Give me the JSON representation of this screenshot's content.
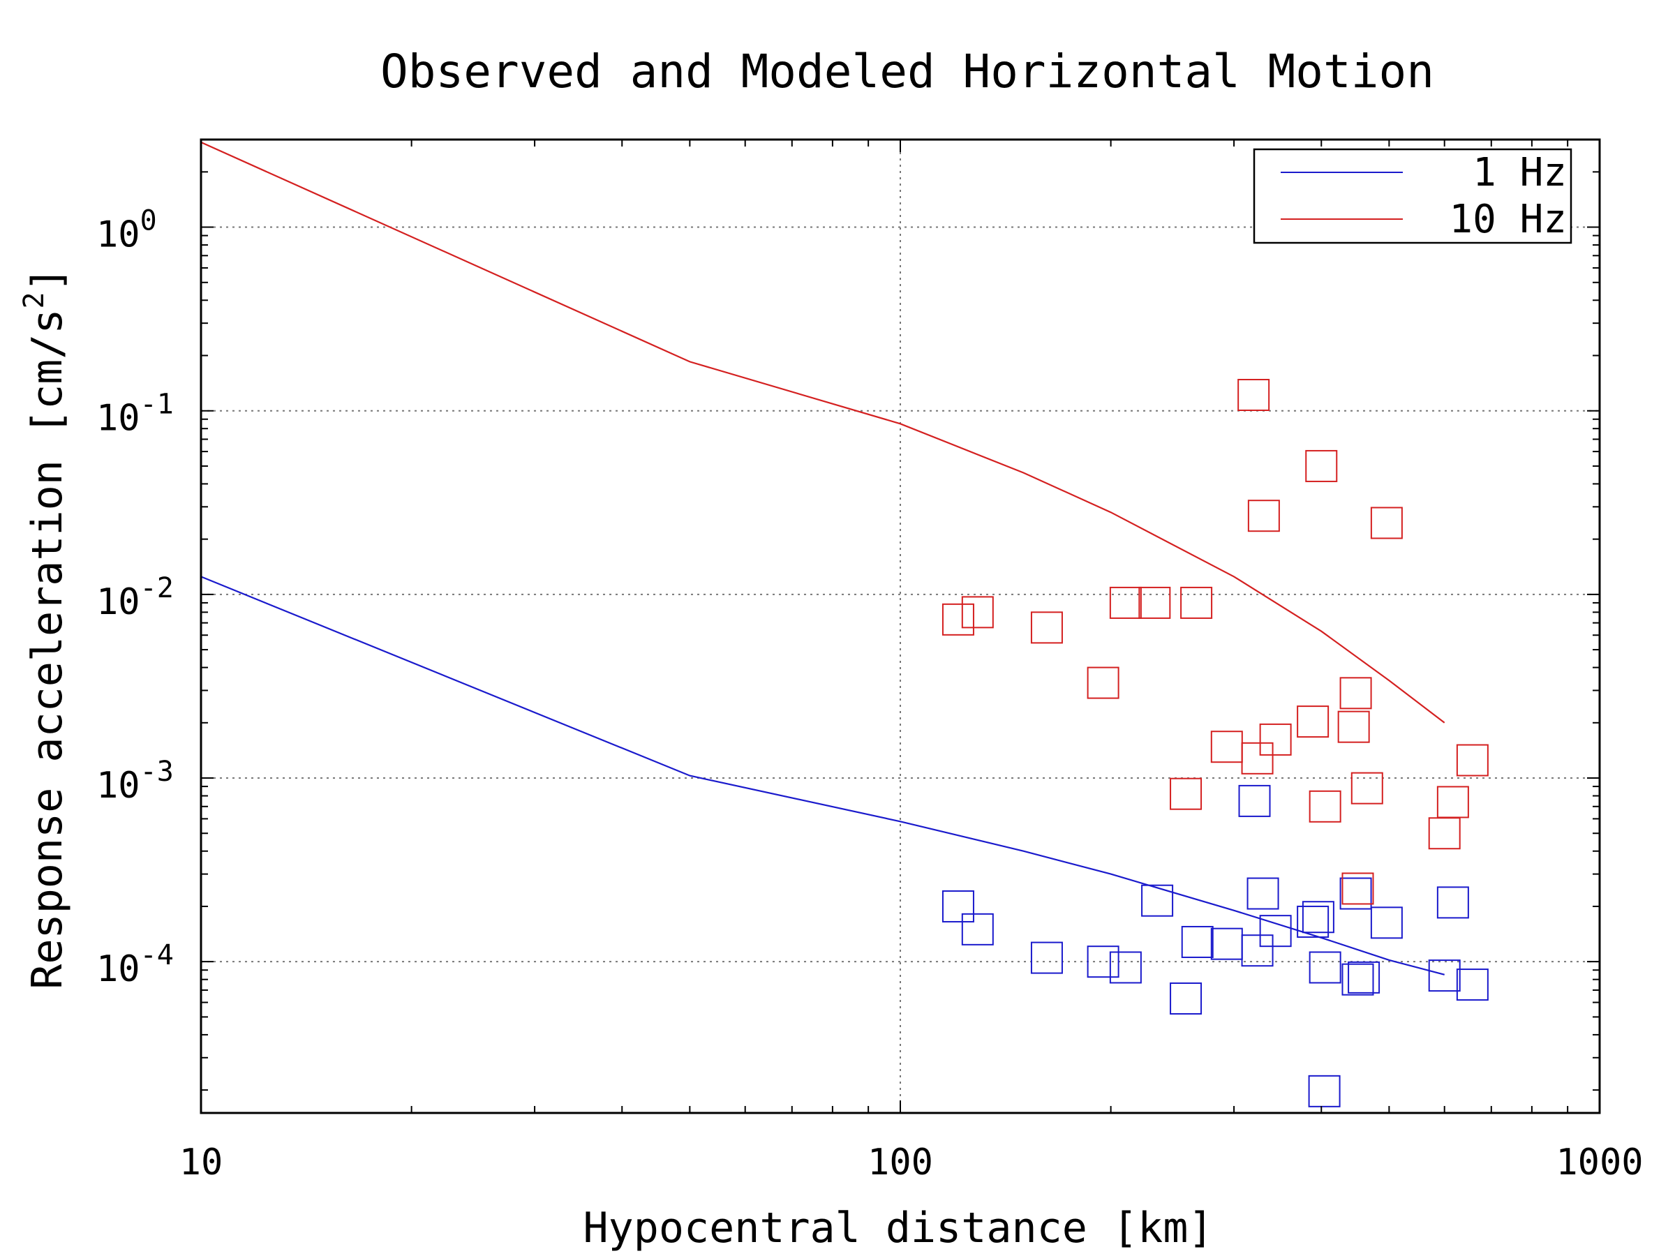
{
  "chart_data": {
    "type": "scatter",
    "title": "Observed and Modeled Horizontal Motion",
    "xlabel": "Hypocentral distance [km]",
    "ylabel": "Response acceleration [cm/s",
    "ylabel_sup": "2",
    "ylabel_close": "]",
    "x_scale": "log",
    "y_scale": "log",
    "xlim": [
      10,
      1000
    ],
    "ylim": [
      1.5e-05,
      3.0
    ],
    "grid": true,
    "legend_position": "top-right",
    "x_ticks": [
      {
        "value": 10,
        "label": "10"
      },
      {
        "value": 100,
        "label": "100"
      },
      {
        "value": 1000,
        "label": "1000"
      }
    ],
    "y_ticks": [
      {
        "value": 1,
        "base": "10",
        "exp": "0"
      },
      {
        "value": 0.1,
        "base": "10",
        "exp": "-1"
      },
      {
        "value": 0.01,
        "base": "10",
        "exp": "-2"
      },
      {
        "value": 0.001,
        "base": "10",
        "exp": "-3"
      },
      {
        "value": 0.0001,
        "base": "10",
        "exp": "-4"
      }
    ],
    "colors": {
      "one_hz": "#1a1acc",
      "ten_hz": "#d42020",
      "grid": "#777777",
      "axes": "#000000"
    },
    "series": [
      {
        "name": "1 Hz",
        "kind": "line",
        "color": "#1a1acc",
        "x": [
          10,
          50,
          100,
          150,
          200,
          300,
          400,
          500,
          600
        ],
        "y": [
          0.0125,
          0.00103,
          0.00058,
          0.0004,
          0.0003,
          0.00019,
          0.000135,
          0.000102,
          8.5e-05
        ]
      },
      {
        "name": "10 Hz",
        "kind": "line",
        "color": "#d42020",
        "x": [
          10,
          50,
          100,
          150,
          200,
          300,
          400,
          500,
          600
        ],
        "y": [
          2.9,
          0.185,
          0.085,
          0.046,
          0.028,
          0.0125,
          0.0063,
          0.0034,
          0.002
        ]
      },
      {
        "kind": "markers",
        "marker": "square",
        "color": "#1a1acc",
        "x": [
          121,
          129,
          162,
          195,
          210,
          233,
          256,
          266,
          293,
          321,
          324,
          330,
          344,
          389,
          396,
          405,
          448,
          451,
          460,
          496,
          600,
          617,
          658
        ],
        "y": [
          0.0002,
          0.00015,
          0.000105,
          0.0001,
          9.3e-05,
          0.000215,
          6.3e-05,
          0.000128,
          0.000125,
          0.00075,
          0.000115,
          0.000235,
          0.000147,
          0.000165,
          0.000175,
          9.3e-05,
          0.000235,
          8e-05,
          8.2e-05,
          0.000163,
          8.4e-05,
          0.00021,
          7.5e-05
        ]
      },
      {
        "kind": "markers",
        "marker": "square",
        "color": "#d42020",
        "x": [
          121,
          129,
          162,
          195,
          210,
          231,
          265,
          256,
          293,
          320,
          324,
          331,
          344,
          389,
          400,
          405,
          445,
          448,
          465,
          496,
          600,
          617,
          658
        ],
        "y": [
          0.0073,
          0.008,
          0.0066,
          0.0033,
          0.009,
          0.009,
          0.009,
          0.00082,
          0.00148,
          0.122,
          0.00128,
          0.0268,
          0.00162,
          0.00203,
          0.05,
          0.0007,
          0.0019,
          0.0029,
          0.00088,
          0.0245,
          0.0005,
          0.00074,
          0.00125
        ]
      },
      {
        "kind": "markers",
        "marker": "square",
        "color": "#1a1acc",
        "x": [
          404
        ],
        "y": [
          1.97e-05
        ]
      },
      {
        "kind": "markers",
        "marker": "square",
        "color": "#d42020",
        "x": [
          451
        ],
        "y": [
          0.00025
        ]
      }
    ]
  }
}
